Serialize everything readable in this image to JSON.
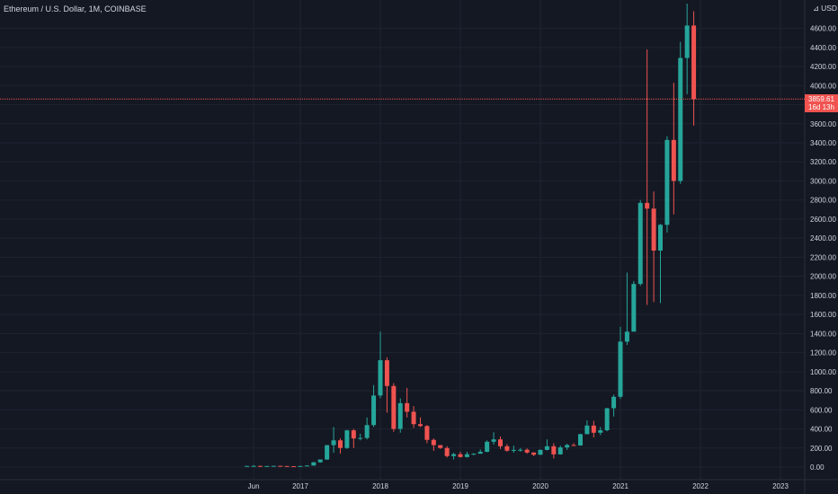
{
  "header": {
    "symbol": "Ethereum / U.S. Dollar",
    "separator": ", ",
    "interval": "1M",
    "exchange": "COINBASE"
  },
  "currency": {
    "label": "USD",
    "lock_icon": "lock-icon"
  },
  "current_price": {
    "value": "3859.61",
    "countdown": "16d 13h"
  },
  "colors": {
    "background": "#141823",
    "grid": "#1f2330",
    "up": "#26a69a",
    "down": "#ef5350",
    "axis_text": "#d1d4dc",
    "price_line": "#ef5350"
  },
  "chart_data": {
    "type": "candlestick",
    "title": "Ethereum / U.S. Dollar, 1M, COINBASE",
    "xlabel": "",
    "ylabel": "",
    "ylim": [
      0,
      4800
    ],
    "y_ticks": [
      "0.00",
      "200.00",
      "400.00",
      "600.00",
      "800.00",
      "1000.00",
      "1200.00",
      "1400.00",
      "1600.00",
      "1800.00",
      "2000.00",
      "2200.00",
      "2400.00",
      "2600.00",
      "2800.00",
      "3000.00",
      "3200.00",
      "3400.00",
      "3600.00",
      "3800.00",
      "4000.00",
      "4200.00",
      "4400.00",
      "4600.00"
    ],
    "x_ticks": [
      {
        "label": "Jun",
        "month": "2016-06"
      },
      {
        "label": "2017",
        "month": "2017-01"
      },
      {
        "label": "2018",
        "month": "2018-01"
      },
      {
        "label": "2019",
        "month": "2019-01"
      },
      {
        "label": "2020",
        "month": "2020-01"
      },
      {
        "label": "2021",
        "month": "2021-01"
      },
      {
        "label": "2022",
        "month": "2022-01"
      },
      {
        "label": "2023",
        "month": "2023-01"
      }
    ],
    "grid": true,
    "x_range": [
      "2016-05",
      "2023-06"
    ],
    "candles": [
      {
        "month": "2016-05",
        "o": 9,
        "h": 14,
        "l": 9,
        "c": 12
      },
      {
        "month": "2016-06",
        "o": 12,
        "h": 21,
        "l": 11,
        "c": 12
      },
      {
        "month": "2016-07",
        "o": 12,
        "h": 15,
        "l": 10,
        "c": 11
      },
      {
        "month": "2016-08",
        "o": 11,
        "h": 12,
        "l": 10,
        "c": 11
      },
      {
        "month": "2016-09",
        "o": 11,
        "h": 14,
        "l": 11,
        "c": 13
      },
      {
        "month": "2016-10",
        "o": 13,
        "h": 14,
        "l": 10,
        "c": 11
      },
      {
        "month": "2016-11",
        "o": 11,
        "h": 12,
        "l": 8,
        "c": 9
      },
      {
        "month": "2016-12",
        "o": 9,
        "h": 9,
        "l": 6,
        "c": 8
      },
      {
        "month": "2017-01",
        "o": 8,
        "h": 12,
        "l": 8,
        "c": 11
      },
      {
        "month": "2017-02",
        "o": 11,
        "h": 18,
        "l": 10,
        "c": 16
      },
      {
        "month": "2017-03",
        "o": 16,
        "h": 53,
        "l": 16,
        "c": 50
      },
      {
        "month": "2017-04",
        "o": 50,
        "h": 80,
        "l": 45,
        "c": 79
      },
      {
        "month": "2017-05",
        "o": 79,
        "h": 230,
        "l": 75,
        "c": 230
      },
      {
        "month": "2017-06",
        "o": 230,
        "h": 420,
        "l": 150,
        "c": 280
      },
      {
        "month": "2017-07",
        "o": 280,
        "h": 300,
        "l": 140,
        "c": 200
      },
      {
        "month": "2017-08",
        "o": 200,
        "h": 390,
        "l": 190,
        "c": 385
      },
      {
        "month": "2017-09",
        "o": 385,
        "h": 400,
        "l": 200,
        "c": 300
      },
      {
        "month": "2017-10",
        "o": 300,
        "h": 350,
        "l": 280,
        "c": 305
      },
      {
        "month": "2017-11",
        "o": 305,
        "h": 520,
        "l": 290,
        "c": 440
      },
      {
        "month": "2017-12",
        "o": 440,
        "h": 860,
        "l": 420,
        "c": 750
      },
      {
        "month": "2018-01",
        "o": 750,
        "h": 1420,
        "l": 720,
        "c": 1120
      },
      {
        "month": "2018-02",
        "o": 1120,
        "h": 1150,
        "l": 570,
        "c": 850
      },
      {
        "month": "2018-03",
        "o": 850,
        "h": 880,
        "l": 370,
        "c": 400
      },
      {
        "month": "2018-04",
        "o": 400,
        "h": 720,
        "l": 360,
        "c": 670
      },
      {
        "month": "2018-05",
        "o": 670,
        "h": 830,
        "l": 520,
        "c": 580
      },
      {
        "month": "2018-06",
        "o": 580,
        "h": 640,
        "l": 410,
        "c": 450
      },
      {
        "month": "2018-07",
        "o": 450,
        "h": 520,
        "l": 420,
        "c": 430
      },
      {
        "month": "2018-08",
        "o": 430,
        "h": 440,
        "l": 250,
        "c": 285
      },
      {
        "month": "2018-09",
        "o": 285,
        "h": 300,
        "l": 170,
        "c": 230
      },
      {
        "month": "2018-10",
        "o": 230,
        "h": 230,
        "l": 190,
        "c": 200
      },
      {
        "month": "2018-11",
        "o": 200,
        "h": 220,
        "l": 100,
        "c": 115
      },
      {
        "month": "2018-12",
        "o": 115,
        "h": 150,
        "l": 80,
        "c": 135
      },
      {
        "month": "2019-01",
        "o": 135,
        "h": 160,
        "l": 100,
        "c": 105
      },
      {
        "month": "2019-02",
        "o": 105,
        "h": 160,
        "l": 100,
        "c": 135
      },
      {
        "month": "2019-03",
        "o": 135,
        "h": 145,
        "l": 125,
        "c": 140
      },
      {
        "month": "2019-04",
        "o": 140,
        "h": 185,
        "l": 140,
        "c": 160
      },
      {
        "month": "2019-05",
        "o": 160,
        "h": 280,
        "l": 155,
        "c": 265
      },
      {
        "month": "2019-06",
        "o": 265,
        "h": 365,
        "l": 235,
        "c": 290
      },
      {
        "month": "2019-07",
        "o": 290,
        "h": 320,
        "l": 190,
        "c": 218
      },
      {
        "month": "2019-08",
        "o": 218,
        "h": 240,
        "l": 160,
        "c": 172
      },
      {
        "month": "2019-09",
        "o": 172,
        "h": 225,
        "l": 150,
        "c": 180
      },
      {
        "month": "2019-10",
        "o": 180,
        "h": 200,
        "l": 160,
        "c": 182
      },
      {
        "month": "2019-11",
        "o": 182,
        "h": 195,
        "l": 140,
        "c": 152
      },
      {
        "month": "2019-12",
        "o": 152,
        "h": 155,
        "l": 115,
        "c": 129
      },
      {
        "month": "2020-01",
        "o": 129,
        "h": 185,
        "l": 127,
        "c": 180
      },
      {
        "month": "2020-02",
        "o": 180,
        "h": 290,
        "l": 175,
        "c": 218
      },
      {
        "month": "2020-03",
        "o": 218,
        "h": 250,
        "l": 90,
        "c": 133
      },
      {
        "month": "2020-04",
        "o": 133,
        "h": 225,
        "l": 130,
        "c": 206
      },
      {
        "month": "2020-05",
        "o": 206,
        "h": 245,
        "l": 180,
        "c": 231
      },
      {
        "month": "2020-06",
        "o": 231,
        "h": 250,
        "l": 220,
        "c": 226
      },
      {
        "month": "2020-07",
        "o": 226,
        "h": 350,
        "l": 225,
        "c": 345
      },
      {
        "month": "2020-08",
        "o": 345,
        "h": 490,
        "l": 345,
        "c": 435
      },
      {
        "month": "2020-09",
        "o": 435,
        "h": 485,
        "l": 310,
        "c": 360
      },
      {
        "month": "2020-10",
        "o": 360,
        "h": 420,
        "l": 335,
        "c": 386
      },
      {
        "month": "2020-11",
        "o": 386,
        "h": 620,
        "l": 375,
        "c": 617
      },
      {
        "month": "2020-12",
        "o": 617,
        "h": 760,
        "l": 530,
        "c": 737
      },
      {
        "month": "2021-01",
        "o": 737,
        "h": 1470,
        "l": 715,
        "c": 1315
      },
      {
        "month": "2021-02",
        "o": 1315,
        "h": 2040,
        "l": 1280,
        "c": 1420
      },
      {
        "month": "2021-03",
        "o": 1420,
        "h": 1950,
        "l": 1440,
        "c": 1920
      },
      {
        "month": "2021-04",
        "o": 1920,
        "h": 2800,
        "l": 1900,
        "c": 2770
      },
      {
        "month": "2021-05",
        "o": 2770,
        "h": 4380,
        "l": 1700,
        "c": 2710
      },
      {
        "month": "2021-06",
        "o": 2710,
        "h": 2890,
        "l": 1730,
        "c": 2270
      },
      {
        "month": "2021-07",
        "o": 2270,
        "h": 2550,
        "l": 1720,
        "c": 2540
      },
      {
        "month": "2021-08",
        "o": 2540,
        "h": 3470,
        "l": 2460,
        "c": 3430
      },
      {
        "month": "2021-09",
        "o": 3430,
        "h": 4030,
        "l": 2650,
        "c": 3000
      },
      {
        "month": "2021-10",
        "o": 3000,
        "h": 4460,
        "l": 2970,
        "c": 4290
      },
      {
        "month": "2021-11",
        "o": 4290,
        "h": 4860,
        "l": 3910,
        "c": 4630
      },
      {
        "month": "2021-12",
        "o": 4630,
        "h": 4780,
        "l": 3580,
        "c": 3859.61
      }
    ]
  }
}
